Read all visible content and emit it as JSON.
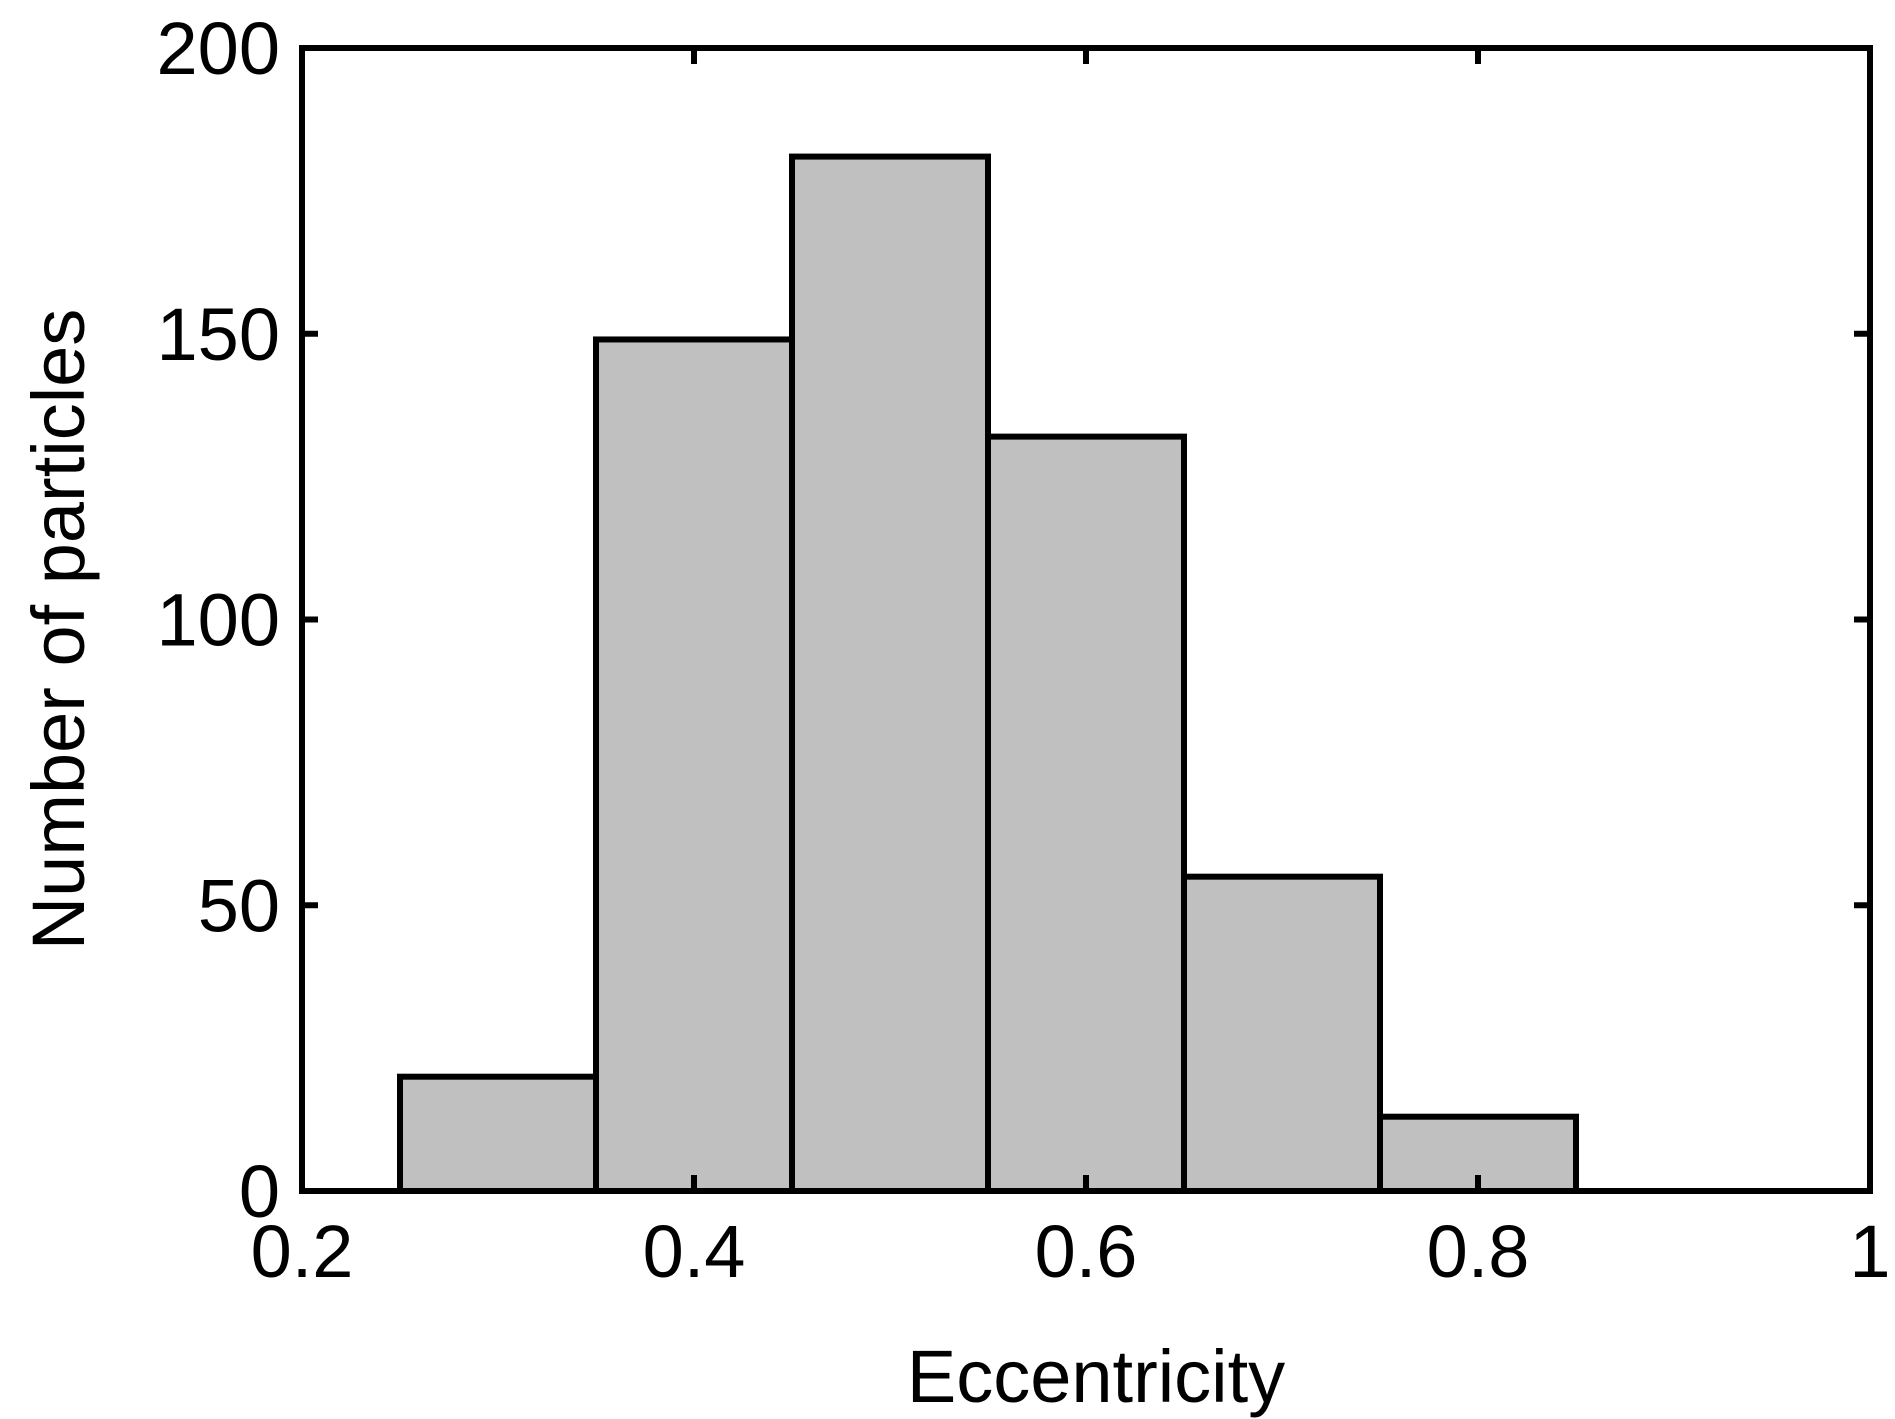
{
  "chart_data": {
    "type": "bar",
    "title": "",
    "xlabel": "Eccentricity",
    "ylabel": "Number of particles",
    "xlim": [
      0.2,
      1
    ],
    "ylim": [
      0,
      200
    ],
    "xticks": [
      0.2,
      0.4,
      0.6,
      0.8,
      1
    ],
    "xtick_labels": [
      "0.2",
      "0.4",
      "0.6",
      "0.8",
      "1"
    ],
    "yticks": [
      0,
      50,
      100,
      150,
      200
    ],
    "ytick_labels": [
      "0",
      "50",
      "100",
      "150",
      "200"
    ],
    "bin_width": 0.1,
    "bins": [
      {
        "center": 0.3,
        "value": 20
      },
      {
        "center": 0.4,
        "value": 149
      },
      {
        "center": 0.5,
        "value": 181
      },
      {
        "center": 0.6,
        "value": 132
      },
      {
        "center": 0.7,
        "value": 55
      },
      {
        "center": 0.8,
        "value": 13
      }
    ],
    "grid": false,
    "legend": "none",
    "colors": {
      "bar_fill": "#c0c0c0",
      "bar_stroke": "#000000",
      "axis": "#000000",
      "background": "#ffffff"
    }
  }
}
